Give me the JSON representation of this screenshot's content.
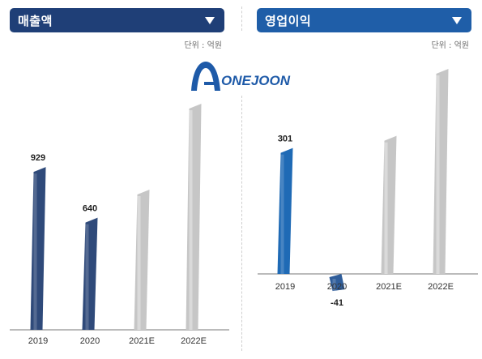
{
  "brand": {
    "name": "ONEJOON"
  },
  "chart_data": [
    {
      "type": "bar",
      "title": "매출액",
      "unit": "단위 : 억원",
      "categories": [
        "2019",
        "2020",
        "2021E",
        "2022E"
      ],
      "values": [
        929,
        640,
        null,
        null
      ],
      "data_labels": [
        "929",
        "640",
        "",
        ""
      ],
      "estimated_values": [
        null,
        null,
        800,
        1290
      ],
      "ylim": [
        0,
        1290
      ],
      "colors": {
        "actual": "#2f4a7a",
        "estimate": "#c6c6c6",
        "header": "#1f3f77"
      }
    },
    {
      "type": "bar",
      "title": "영업이익",
      "unit": "단위 : 억원",
      "categories": [
        "2019",
        "2020",
        "2021E",
        "2022E"
      ],
      "values": [
        301,
        -41,
        null,
        null
      ],
      "data_labels": [
        "301",
        "-41",
        "",
        ""
      ],
      "estimated_values": [
        null,
        null,
        330,
        490
      ],
      "ylim": [
        -60,
        490
      ],
      "colors": {
        "actual": "#1f6ab5",
        "estimate": "#c6c6c6",
        "header": "#1f5ea8"
      }
    }
  ]
}
